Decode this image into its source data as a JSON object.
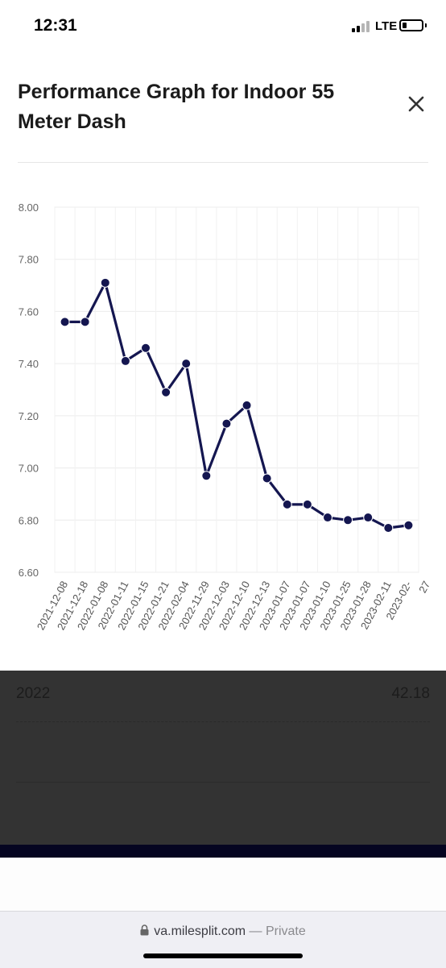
{
  "status_bar": {
    "time": "12:31",
    "network": "LTE"
  },
  "modal": {
    "title": "Performance Graph for Indoor 55 Meter Dash"
  },
  "chart_data": {
    "type": "line",
    "title": "",
    "xlabel": "",
    "ylabel": "",
    "ylim": [
      6.6,
      8.0
    ],
    "y_ticks": [
      "8.00",
      "7.80",
      "7.60",
      "7.40",
      "7.20",
      "7.00",
      "6.80",
      "6.60"
    ],
    "grid": true,
    "line_color": "#141650",
    "categories": [
      "2021-12-08",
      "2021-12-18",
      "2022-01-08",
      "2022-01-11",
      "2022-01-15",
      "2022-01-21",
      "2022-02-04",
      "2022-11-29",
      "2022-12-03",
      "2022-12-10",
      "2022-12-13",
      "2023-01-07",
      "2023-01-07",
      "2023-01-10",
      "2023-01-25",
      "2023-01-28",
      "2023-02-11",
      "2023-02-"
    ],
    "values": [
      7.56,
      7.56,
      7.71,
      7.41,
      7.46,
      7.29,
      7.4,
      6.97,
      7.17,
      7.24,
      6.96,
      6.86,
      6.86,
      6.81,
      6.8,
      6.81,
      6.77,
      6.78
    ],
    "extra_tick_label": "27"
  },
  "table_row": {
    "year": "2022",
    "value": "42.18"
  },
  "browser": {
    "domain": "va.milesplit.com",
    "separator": "—",
    "mode": "Private"
  }
}
